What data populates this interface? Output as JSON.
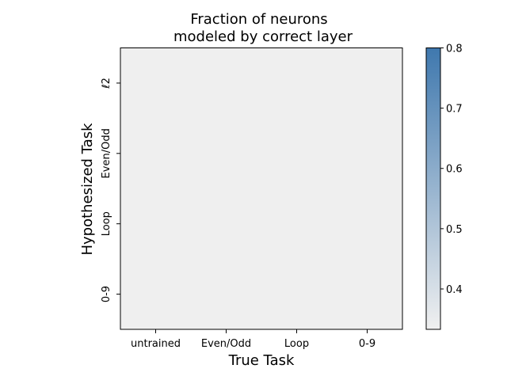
{
  "chart_data": {
    "type": "heatmap",
    "title_line1": "Fraction of neurons",
    "title_line2": "modeled by correct layer",
    "xlabel": "True Task",
    "ylabel": "Hypothesized Task",
    "x_categories": [
      "untrained",
      "Even/Odd",
      "Loop",
      "0-9"
    ],
    "y_categories": [
      "ℓ2",
      "Even/Odd",
      "Loop",
      "0-9"
    ],
    "cell_color": "#efefef",
    "colorbar": {
      "min": 0.333,
      "max": 0.8,
      "ticks": [
        "0.4",
        "0.5",
        "0.6",
        "0.7",
        "0.8"
      ],
      "tick_values": [
        0.4,
        0.5,
        0.6,
        0.7,
        0.8
      ],
      "color_low": "#f0f0f0",
      "color_high": "#3f78ae"
    }
  }
}
